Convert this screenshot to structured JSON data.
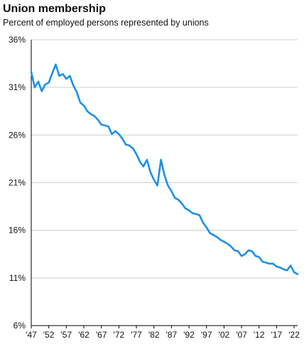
{
  "chart_data": {
    "type": "line",
    "title": "Union membership",
    "subtitle": "Percent of employed persons represented by unions",
    "xlabel": "",
    "ylabel": "",
    "ylim": [
      6,
      36
    ],
    "yticks": [
      6,
      11,
      16,
      21,
      26,
      31,
      36
    ],
    "ytick_labels": [
      "6%",
      "11%",
      "16%",
      "21%",
      "26%",
      "31%",
      "36%"
    ],
    "xlim": [
      1947,
      2023
    ],
    "xticks": [
      1947,
      1952,
      1957,
      1962,
      1967,
      1972,
      1977,
      1982,
      1987,
      1992,
      1997,
      2002,
      2007,
      2012,
      2017,
      2022
    ],
    "xtick_labels": [
      "'47",
      "'52",
      "'57",
      "'62",
      "'67",
      "'72",
      "'77",
      "'82",
      "'87",
      "'92",
      "'97",
      "'02",
      "'07",
      "'12",
      "'17",
      "'22"
    ],
    "grid": true,
    "line_color": "#1e90e6",
    "series": [
      {
        "x": [
          1947,
          1948,
          1949,
          1950,
          1951,
          1952,
          1953,
          1954,
          1955,
          1956,
          1957,
          1958,
          1959,
          1960,
          1961,
          1962,
          1963,
          1964,
          1965,
          1966,
          1967,
          1968,
          1969,
          1970,
          1971,
          1972,
          1973,
          1974,
          1975,
          1976,
          1977,
          1978,
          1979,
          1980,
          1981,
          1982,
          1983,
          1984,
          1985,
          1986,
          1987,
          1988,
          1989,
          1990,
          1991,
          1992,
          1993,
          1994,
          1995,
          1996,
          1997,
          1998,
          1999,
          2000,
          2001,
          2002,
          2003,
          2004,
          2005,
          2006,
          2007,
          2008,
          2009,
          2010,
          2011,
          2012,
          2013,
          2014,
          2015,
          2016,
          2017,
          2018,
          2019,
          2020,
          2021,
          2022,
          2023
        ],
        "values": [
          32.6,
          31.0,
          31.6,
          30.6,
          31.3,
          31.5,
          32.5,
          33.4,
          32.2,
          32.4,
          31.9,
          32.2,
          31.2,
          30.5,
          29.4,
          29.1,
          28.5,
          28.2,
          28.0,
          27.6,
          27.1,
          27.0,
          26.9,
          26.1,
          26.4,
          26.1,
          25.6,
          25.0,
          24.9,
          24.6,
          24.0,
          23.2,
          22.7,
          23.4,
          22.1,
          21.3,
          20.7,
          23.4,
          21.8,
          20.7,
          20.1,
          19.4,
          19.2,
          18.8,
          18.3,
          18.1,
          17.8,
          17.7,
          17.6,
          16.8,
          16.3,
          15.7,
          15.5,
          15.3,
          15.0,
          14.8,
          14.6,
          14.3,
          13.9,
          13.8,
          13.3,
          13.5,
          13.9,
          13.8,
          13.3,
          13.2,
          12.7,
          12.6,
          12.5,
          12.5,
          12.2,
          12.1,
          11.9,
          11.8,
          12.3,
          11.6,
          11.4
        ]
      }
    ]
  }
}
